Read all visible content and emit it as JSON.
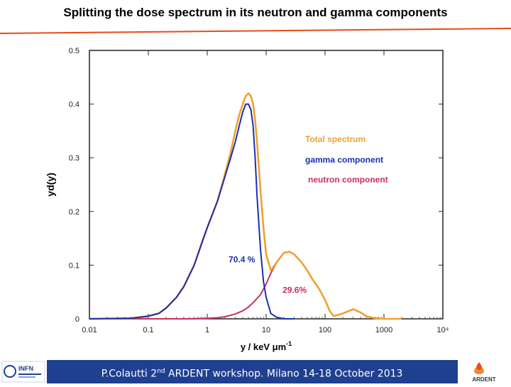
{
  "slide": {
    "title": "Splitting the dose spectrum in its neutron and gamma components",
    "footer_text": "P.Colautti 2nd ARDENT workshop. Milano 14-18 October 2013",
    "footer_text_parts": {
      "pre": "P.Colautti 2",
      "sup": "nd",
      "post": " ARDENT workshop. Milano 14-18 October 2013"
    },
    "logo_left": "INFN",
    "logo_right": "ARDENT"
  },
  "colors": {
    "total": "#f0a030",
    "gamma": "#1a2fb0",
    "neutron": "#c8305a",
    "footer": "#1f3f8f",
    "rule": "#e84a1a"
  },
  "chart_data": {
    "type": "line",
    "xscale": "log",
    "xlim": [
      0.01,
      10000
    ],
    "ylim": [
      0,
      0.5
    ],
    "xlabel": "y / keV μm",
    "xlabel_sup": "-1",
    "ylabel": "yd(y)",
    "xticks": [
      0.01,
      0.1,
      1,
      10,
      100,
      1000,
      10000
    ],
    "xtick_labels": [
      "0.01",
      "0.1",
      "1",
      "10",
      "100",
      "1000",
      "10⁴"
    ],
    "yticks": [
      0,
      0.1,
      0.2,
      0.3,
      0.4,
      0.5
    ],
    "ytick_labels": [
      "0",
      "0.1",
      "0.2",
      "0.3",
      "0.4",
      "0.5"
    ],
    "legend": [
      {
        "name": "Total spectrum",
        "series": "total"
      },
      {
        "name": "gamma component",
        "series": "gamma"
      },
      {
        "name": "neutron component",
        "series": "neutron"
      }
    ],
    "legend_placement": "right",
    "annotations": [
      {
        "text": "70.4 %",
        "x": 2.3,
        "y": 0.105,
        "series": "gamma"
      },
      {
        "text": "29.6%",
        "x": 19,
        "y": 0.048,
        "series": "neutron"
      }
    ],
    "series": [
      {
        "key": "total",
        "x": [
          0.01,
          0.05,
          0.1,
          0.15,
          0.2,
          0.3,
          0.4,
          0.6,
          0.8,
          1,
          1.5,
          2,
          2.5,
          3,
          3.5,
          4,
          4.5,
          5,
          5.5,
          6,
          6.5,
          7,
          8,
          9,
          10,
          12,
          15,
          20,
          25,
          30,
          40,
          50,
          60,
          80,
          100,
          120,
          140,
          200,
          300,
          400,
          500,
          700,
          1000,
          2000
        ],
        "y": [
          0,
          0.001,
          0.005,
          0.01,
          0.02,
          0.04,
          0.06,
          0.1,
          0.14,
          0.17,
          0.22,
          0.27,
          0.31,
          0.35,
          0.38,
          0.4,
          0.415,
          0.42,
          0.415,
          0.4,
          0.37,
          0.33,
          0.24,
          0.17,
          0.12,
          0.09,
          0.105,
          0.123,
          0.125,
          0.12,
          0.105,
          0.09,
          0.075,
          0.055,
          0.035,
          0.015,
          0.005,
          0.01,
          0.018,
          0.012,
          0.005,
          0.001,
          0,
          0
        ]
      },
      {
        "key": "gamma",
        "x": [
          0.01,
          0.05,
          0.1,
          0.15,
          0.2,
          0.3,
          0.4,
          0.6,
          0.8,
          1,
          1.5,
          2,
          2.5,
          3,
          3.5,
          4,
          4.5,
          5,
          5.5,
          6,
          6.5,
          7,
          8,
          9,
          10,
          12,
          15,
          20,
          30
        ],
        "y": [
          0,
          0.001,
          0.005,
          0.01,
          0.02,
          0.04,
          0.06,
          0.1,
          0.14,
          0.17,
          0.22,
          0.265,
          0.3,
          0.33,
          0.36,
          0.385,
          0.4,
          0.4,
          0.39,
          0.36,
          0.3,
          0.23,
          0.13,
          0.07,
          0.04,
          0.01,
          0.003,
          0,
          0
        ]
      },
      {
        "key": "neutron",
        "x": [
          0.01,
          0.5,
          1,
          1.5,
          2,
          3,
          4,
          5,
          6,
          8,
          10,
          12,
          15,
          20,
          25,
          30,
          40,
          50,
          60,
          80,
          100,
          120,
          140,
          200,
          300,
          400,
          500,
          700,
          1000
        ],
        "y": [
          0,
          0,
          0.001,
          0.002,
          0.004,
          0.009,
          0.015,
          0.022,
          0.03,
          0.045,
          0.065,
          0.085,
          0.105,
          0.123,
          0.125,
          0.12,
          0.105,
          0.09,
          0.075,
          0.055,
          0.035,
          0.015,
          0.005,
          0.01,
          0.018,
          0.012,
          0.005,
          0.001,
          0
        ]
      }
    ]
  }
}
